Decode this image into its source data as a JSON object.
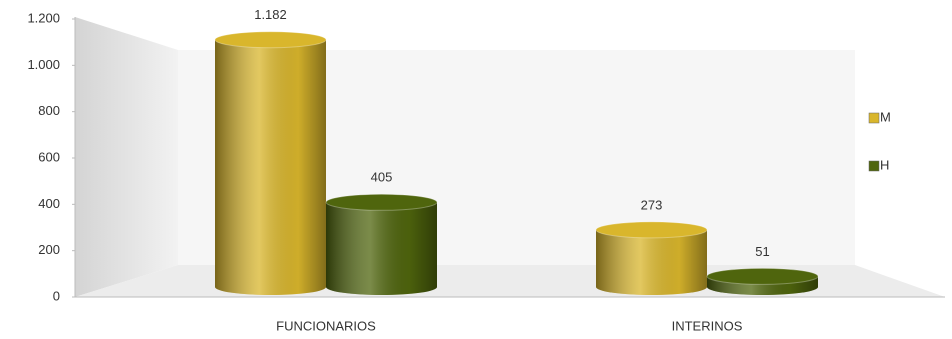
{
  "chart_data": {
    "type": "bar",
    "categories": [
      "FUNCIONARIOS",
      "INTERINOS"
    ],
    "series": [
      {
        "name": "M",
        "color": "#d9b62c",
        "values": [
          1182,
          273
        ],
        "value_labels": [
          "1.182",
          "273"
        ]
      },
      {
        "name": "H",
        "color": "#4f650d",
        "values": [
          405,
          51
        ],
        "value_labels": [
          "405",
          "51"
        ]
      }
    ],
    "ylim": [
      0,
      1200
    ],
    "yticks": [
      0,
      200,
      400,
      600,
      800,
      {
        "value": 1000,
        "label": "1.000"
      },
      {
        "value": 1200,
        "label": "1.200"
      }
    ],
    "legend": "right"
  }
}
